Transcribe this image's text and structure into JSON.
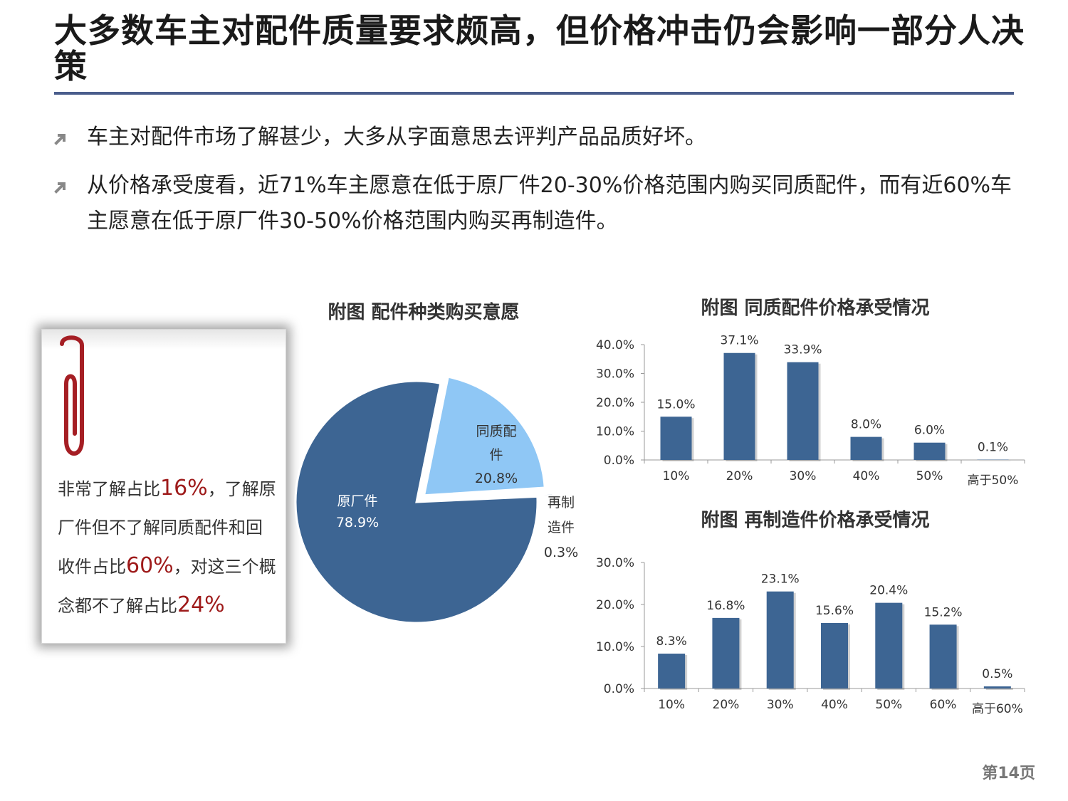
{
  "title": "大多数车主对配件质量要求颇高，但价格冲击仍会影响一部分人决策",
  "bullets": [
    "车主对配件市场了解甚少，大多从字面意思去评判产品品质好坏。",
    "从价格承受度看，近71%车主愿意在低于原厂件20-30%价格范围内购买同质配件，而有近60%车主愿意在低于原厂件30-50%价格范围内购买再制造件。"
  ],
  "note": {
    "p1": "非常了解占比",
    "h1": "16%",
    "p2": "，了解原厂件但不了解同质配件和回收件占比",
    "h2": "60%",
    "p3": "，对这三个概念都不了解占比",
    "h3": "24%"
  },
  "page_number": "第14页",
  "colors": {
    "bar": "#3d6593",
    "pie_main": "#3d6593",
    "pie_light": "#8fc7f5",
    "highlight": "#9e1a1a",
    "rule": "#4a5d8c"
  },
  "chart_data": [
    {
      "type": "pie",
      "title": "附图 配件种类购买意愿",
      "categories": [
        "原厂件",
        "同质配件",
        "再制造件"
      ],
      "values": [
        78.9,
        20.8,
        0.3
      ],
      "data_labels": [
        "78.9%",
        "20.8%",
        "0.3%"
      ],
      "label_lines": [
        [
          "原厂件"
        ],
        [
          "同质配",
          "件"
        ],
        [
          "再制",
          "造件"
        ]
      ]
    },
    {
      "type": "bar",
      "title": "附图 同质配件价格承受情况",
      "categories": [
        "10%",
        "20%",
        "30%",
        "40%",
        "50%",
        "高于50%"
      ],
      "values": [
        15.0,
        37.1,
        33.9,
        8.0,
        6.0,
        0.1
      ],
      "data_labels": [
        "15.0%",
        "37.1%",
        "33.9%",
        "8.0%",
        "6.0%",
        "0.1%"
      ],
      "ylim": [
        0,
        40
      ],
      "yticks": [
        "0.0%",
        "10.0%",
        "20.0%",
        "30.0%",
        "40.0%"
      ]
    },
    {
      "type": "bar",
      "title": "附图 再制造件价格承受情况",
      "categories": [
        "10%",
        "20%",
        "30%",
        "40%",
        "50%",
        "60%",
        "高于60%"
      ],
      "values": [
        8.3,
        16.8,
        23.1,
        15.6,
        20.4,
        15.2,
        0.5
      ],
      "data_labels": [
        "8.3%",
        "16.8%",
        "23.1%",
        "15.6%",
        "20.4%",
        "15.2%",
        "0.5%"
      ],
      "ylim": [
        0,
        30
      ],
      "yticks": [
        "0.0%",
        "10.0%",
        "20.0%",
        "30.0%"
      ]
    }
  ]
}
